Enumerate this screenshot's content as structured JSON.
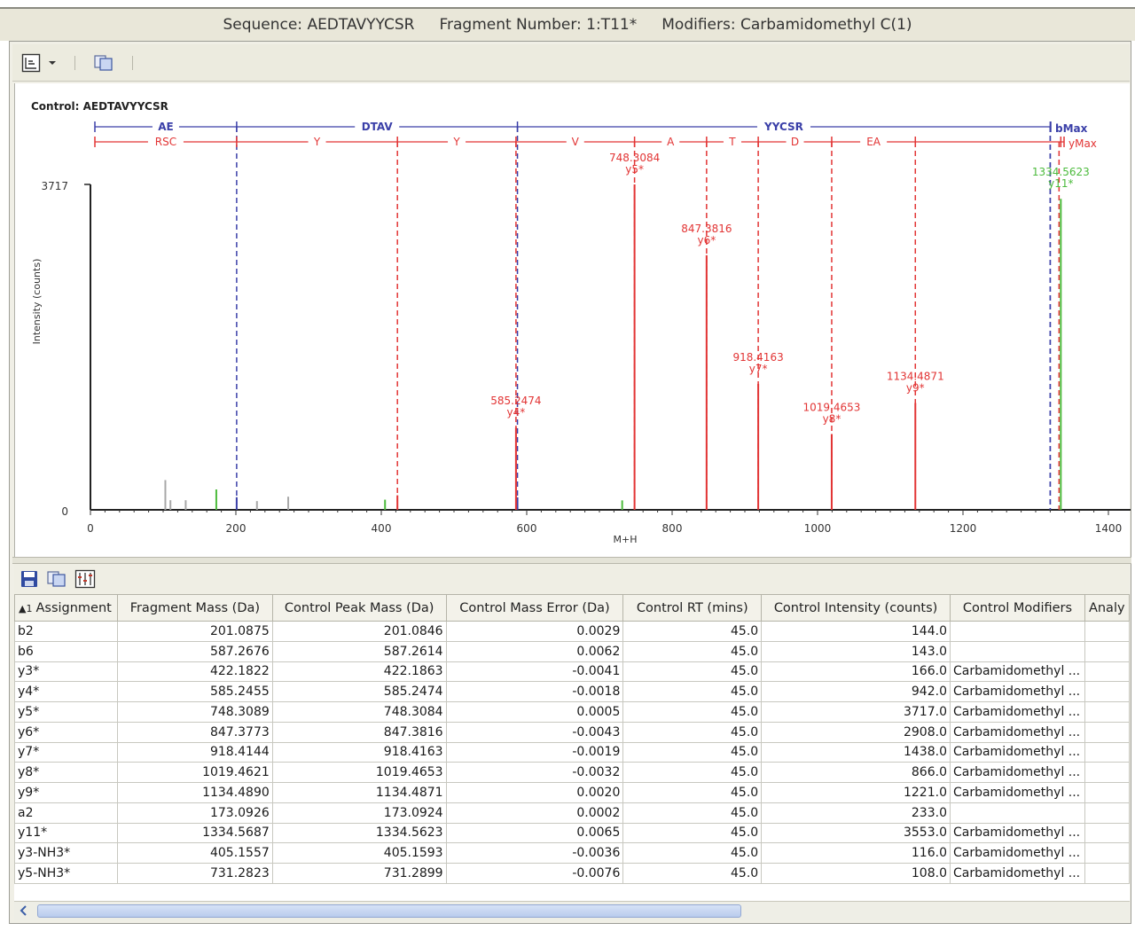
{
  "window": {
    "sequence": "Sequence: AEDTAVYYCSR",
    "fragment_number": "Fragment Number: 1:T11*",
    "modifiers": "Modifiers: Carbamidomethyl C(1)"
  },
  "toolbar_top": {
    "layout_icon": "layout-grid-icon",
    "dropdown_icon": "chevron-down-icon",
    "copy_icon": "copy-icon"
  },
  "chart": {
    "control_label": "Control: AEDTAVYYCSR",
    "y_axis_label": "Intensity (counts)",
    "x_axis_label": "M+H",
    "y_max_label": "3717",
    "y_zero_label": "0",
    "b_series_label": "bMax",
    "y_series_label": "yMax",
    "b_segments": [
      "AE",
      "DTAV",
      "YYCSR"
    ],
    "y_segments": [
      "RSC",
      "Y",
      "Y",
      "V",
      "A",
      "T",
      "D",
      "EA"
    ],
    "colors": {
      "b_series": "#3a3fa8",
      "y_series": "#e23434",
      "other_ion": "#4cbb3c",
      "noise": "#a8a8a8"
    }
  },
  "chart_data": {
    "type": "bar",
    "x_ticks": [
      "0",
      "200",
      "400",
      "600",
      "800",
      "1000",
      "1200",
      "1400"
    ],
    "xlim": [
      0,
      1400
    ],
    "ylim": [
      0,
      3717
    ],
    "xlabel": "M+H",
    "ylabel": "Intensity (counts)",
    "b_boundaries": [
      201.0846,
      587.2614,
      1320
    ],
    "y_boundaries": [
      201.0846,
      422.1863,
      585.2474,
      748.3084,
      847.3816,
      918.4163,
      1019.4653,
      1134.4871,
      1334.5623
    ],
    "peaks": [
      {
        "x": 585.2474,
        "y": 942,
        "color": "y",
        "mz": "585.2474",
        "ion": "y4*"
      },
      {
        "x": 748.3084,
        "y": 3717,
        "color": "y",
        "mz": "748.3084",
        "ion": "y5*"
      },
      {
        "x": 847.3816,
        "y": 2908,
        "color": "y",
        "mz": "847.3816",
        "ion": "y6*"
      },
      {
        "x": 918.4163,
        "y": 1438,
        "color": "y",
        "mz": "918.4163",
        "ion": "y7*"
      },
      {
        "x": 1019.4653,
        "y": 866,
        "color": "y",
        "mz": "1019.4653",
        "ion": "y8*"
      },
      {
        "x": 1134.4871,
        "y": 1221,
        "color": "y",
        "mz": "1134.4871",
        "ion": "y9*"
      },
      {
        "x": 1334.5623,
        "y": 3553,
        "color": "g",
        "mz": "1334.5623",
        "ion": "y11*"
      }
    ],
    "minor_peaks": [
      {
        "x": 103,
        "y": 340,
        "color": "n"
      },
      {
        "x": 110,
        "y": 110,
        "color": "n"
      },
      {
        "x": 131,
        "y": 110,
        "color": "n"
      },
      {
        "x": 173.0924,
        "y": 233,
        "color": "g"
      },
      {
        "x": 201.0846,
        "y": 144,
        "color": "b"
      },
      {
        "x": 229,
        "y": 100,
        "color": "n"
      },
      {
        "x": 272,
        "y": 150,
        "color": "n"
      },
      {
        "x": 405.1593,
        "y": 116,
        "color": "g"
      },
      {
        "x": 422.1863,
        "y": 166,
        "color": "y"
      },
      {
        "x": 587.2614,
        "y": 143,
        "color": "b"
      },
      {
        "x": 731.2899,
        "y": 108,
        "color": "g"
      }
    ]
  },
  "bottom_toolbar": {
    "save_icon": "save-icon",
    "copy_icon": "copy-icon",
    "columns_icon": "column-chooser-icon"
  },
  "table": {
    "sort_indicator": "▲1",
    "headers": [
      "Assignment",
      "Fragment Mass (Da)",
      "Control Peak Mass (Da)",
      "Control Mass Error (Da)",
      "Control RT (mins)",
      "Control Intensity (counts)",
      "Control Modifiers",
      "Analy"
    ],
    "rows": [
      [
        "b2",
        "201.0875",
        "201.0846",
        "0.0029",
        "45.0",
        "144.0",
        ""
      ],
      [
        "b6",
        "587.2676",
        "587.2614",
        "0.0062",
        "45.0",
        "143.0",
        ""
      ],
      [
        "y3*",
        "422.1822",
        "422.1863",
        "-0.0041",
        "45.0",
        "166.0",
        "Carbamidomethyl ..."
      ],
      [
        "y4*",
        "585.2455",
        "585.2474",
        "-0.0018",
        "45.0",
        "942.0",
        "Carbamidomethyl ..."
      ],
      [
        "y5*",
        "748.3089",
        "748.3084",
        "0.0005",
        "45.0",
        "3717.0",
        "Carbamidomethyl ..."
      ],
      [
        "y6*",
        "847.3773",
        "847.3816",
        "-0.0043",
        "45.0",
        "2908.0",
        "Carbamidomethyl ..."
      ],
      [
        "y7*",
        "918.4144",
        "918.4163",
        "-0.0019",
        "45.0",
        "1438.0",
        "Carbamidomethyl ..."
      ],
      [
        "y8*",
        "1019.4621",
        "1019.4653",
        "-0.0032",
        "45.0",
        "866.0",
        "Carbamidomethyl ..."
      ],
      [
        "y9*",
        "1134.4890",
        "1134.4871",
        "0.0020",
        "45.0",
        "1221.0",
        "Carbamidomethyl ..."
      ],
      [
        "a2",
        "173.0926",
        "173.0924",
        "0.0002",
        "45.0",
        "233.0",
        ""
      ],
      [
        "y11*",
        "1334.5687",
        "1334.5623",
        "0.0065",
        "45.0",
        "3553.0",
        "Carbamidomethyl ..."
      ],
      [
        "y3-NH3*",
        "405.1557",
        "405.1593",
        "-0.0036",
        "45.0",
        "116.0",
        "Carbamidomethyl ..."
      ],
      [
        "y5-NH3*",
        "731.2823",
        "731.2899",
        "-0.0076",
        "45.0",
        "108.0",
        "Carbamidomethyl ..."
      ]
    ]
  }
}
